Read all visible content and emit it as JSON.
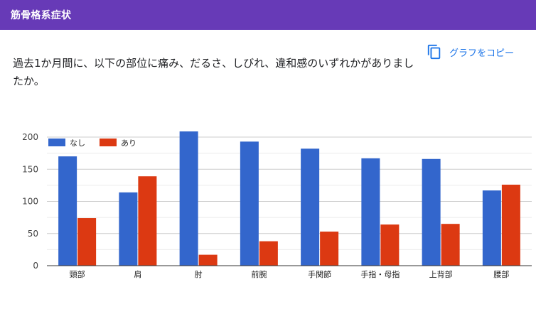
{
  "header": {
    "title": "筋骨格系症状"
  },
  "question": {
    "text": "過去1か月間に、以下の部位に痛み、だるさ、しびれ、違和感のいずれかがありましたか。"
  },
  "copy_button": {
    "label": "グラフをコピー",
    "icon": "copy-icon"
  },
  "colors": {
    "header_bg": "#673ab7",
    "series_none": "#3366cc",
    "series_yes": "#dc3912",
    "accent": "#1a73e8"
  },
  "chart_data": {
    "type": "bar",
    "title": "",
    "xlabel": "",
    "ylabel": "",
    "ylim": [
      0,
      200
    ],
    "yticks": [
      "0",
      "50",
      "100",
      "150",
      "200"
    ],
    "legend_position": "top-left",
    "grid": true,
    "categories": [
      "頸部",
      "肩",
      "肘",
      "前腕",
      "手関節",
      "手指・母指",
      "上背部",
      "腰部"
    ],
    "series": [
      {
        "name": "なし",
        "color": "#3366cc",
        "values": [
          170,
          114,
          209,
          193,
          182,
          167,
          166,
          117
        ]
      },
      {
        "name": "あり",
        "color": "#dc3912",
        "values": [
          74,
          139,
          17,
          38,
          53,
          64,
          65,
          126
        ]
      }
    ]
  }
}
